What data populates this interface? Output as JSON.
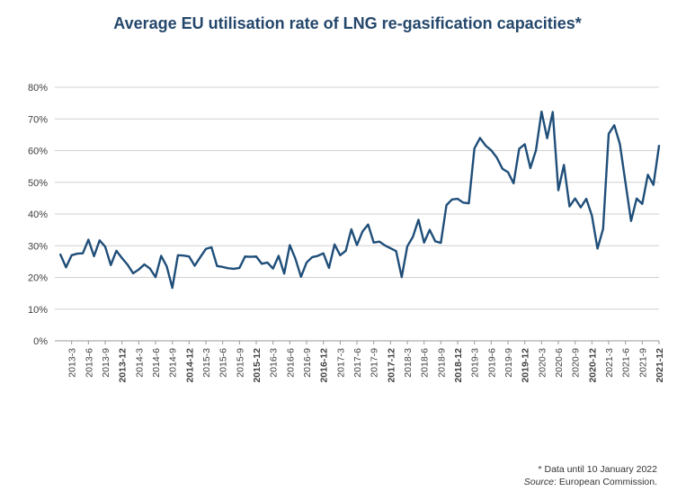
{
  "chart_data": {
    "type": "line",
    "title": "Average EU utilisation rate of LNG re-gasification capacities*",
    "xlabel": "",
    "ylabel": "",
    "ylim": [
      0,
      80
    ],
    "y_ticks": [
      "0%",
      "10%",
      "20%",
      "30%",
      "40%",
      "50%",
      "60%",
      "70%",
      "80%"
    ],
    "grid": true,
    "legend": "none",
    "line_color": "#1f4e79",
    "x": [
      "2013-1",
      "2013-2",
      "2013-3",
      "2013-4",
      "2013-5",
      "2013-6",
      "2013-7",
      "2013-8",
      "2013-9",
      "2013-10",
      "2013-11",
      "2013-12",
      "2014-1",
      "2014-2",
      "2014-3",
      "2014-4",
      "2014-5",
      "2014-6",
      "2014-7",
      "2014-8",
      "2014-9",
      "2014-10",
      "2014-11",
      "2014-12",
      "2015-1",
      "2015-2",
      "2015-3",
      "2015-4",
      "2015-5",
      "2015-6",
      "2015-7",
      "2015-8",
      "2015-9",
      "2015-10",
      "2015-11",
      "2015-12",
      "2016-1",
      "2016-2",
      "2016-3",
      "2016-4",
      "2016-5",
      "2016-6",
      "2016-7",
      "2016-8",
      "2016-9",
      "2016-10",
      "2016-11",
      "2016-12",
      "2017-1",
      "2017-2",
      "2017-3",
      "2017-4",
      "2017-5",
      "2017-6",
      "2017-7",
      "2017-8",
      "2017-9",
      "2017-10",
      "2017-11",
      "2017-12",
      "2018-1",
      "2018-2",
      "2018-3",
      "2018-4",
      "2018-5",
      "2018-6",
      "2018-7",
      "2018-8",
      "2018-9",
      "2018-10",
      "2018-11",
      "2018-12",
      "2019-1",
      "2019-2",
      "2019-3",
      "2019-4",
      "2019-5",
      "2019-6",
      "2019-7",
      "2019-8",
      "2019-9",
      "2019-10",
      "2019-11",
      "2019-12",
      "2020-1",
      "2020-2",
      "2020-3",
      "2020-4",
      "2020-5",
      "2020-6",
      "2020-7",
      "2020-8",
      "2020-9",
      "2020-10",
      "2020-11",
      "2020-12",
      "2021-1",
      "2021-2",
      "2021-3",
      "2021-4",
      "2021-5",
      "2021-6",
      "2021-7",
      "2021-8",
      "2021-9",
      "2021-10",
      "2021-11",
      "2021-12"
    ],
    "x_tick_labels": [
      "2013-3",
      "2013-6",
      "2013-9",
      "2013-12",
      "2014-3",
      "2014-6",
      "2014-9",
      "2014-12",
      "2015-3",
      "2015-6",
      "2015-9",
      "2015-12",
      "2016-3",
      "2016-6",
      "2016-9",
      "2016-12",
      "2017-3",
      "2017-6",
      "2017-9",
      "2017-12",
      "2018-3",
      "2018-6",
      "2018-9",
      "2018-12",
      "2019-3",
      "2019-6",
      "2019-9",
      "2019-12",
      "2020-3",
      "2020-6",
      "2020-9",
      "2020-12",
      "2021-3",
      "2021-6",
      "2021-9",
      "2021-12"
    ],
    "bold_ticks": [
      "2013-12",
      "2014-12",
      "2015-12",
      "2016-12",
      "2017-12",
      "2018-12",
      "2019-12",
      "2020-12",
      "2021-12"
    ],
    "values": [
      27.2,
      23.2,
      27.0,
      27.5,
      27.6,
      31.9,
      26.7,
      31.7,
      29.7,
      23.9,
      28.4,
      26.1,
      24.0,
      21.3,
      22.5,
      24.1,
      22.8,
      20.1,
      26.8,
      23.5,
      16.7,
      27.0,
      26.9,
      26.6,
      23.7,
      26.4,
      29.0,
      29.5,
      23.6,
      23.3,
      22.9,
      22.7,
      23.0,
      26.6,
      26.5,
      26.6,
      24.3,
      24.7,
      22.8,
      26.8,
      21.2,
      30.2,
      25.9,
      20.2,
      24.7,
      26.4,
      26.8,
      27.6,
      23.0,
      30.4,
      27.0,
      28.4,
      35.2,
      30.2,
      34.5,
      36.7,
      31.0,
      31.3,
      30.1,
      29.2,
      28.3,
      20.1,
      29.8,
      32.8,
      38.2,
      31.0,
      35.0,
      31.4,
      30.9,
      42.8,
      44.6,
      44.8,
      43.6,
      43.4,
      60.7,
      64.0,
      61.6,
      60.1,
      57.8,
      54.3,
      53.2,
      49.7,
      60.6,
      62.0,
      54.5,
      60.1,
      72.3,
      63.9,
      72.2,
      47.5,
      55.5,
      42.4,
      44.9,
      42.1,
      44.8,
      39.5,
      29.1,
      35.3,
      65.3,
      68.0,
      62.1,
      49.9,
      37.8,
      44.9,
      43.2,
      52.4,
      49.2,
      61.5
    ]
  },
  "footnote": {
    "note": "* Data until 10 January 2022",
    "source_label": "Source",
    "source_text": ": European Commission."
  }
}
